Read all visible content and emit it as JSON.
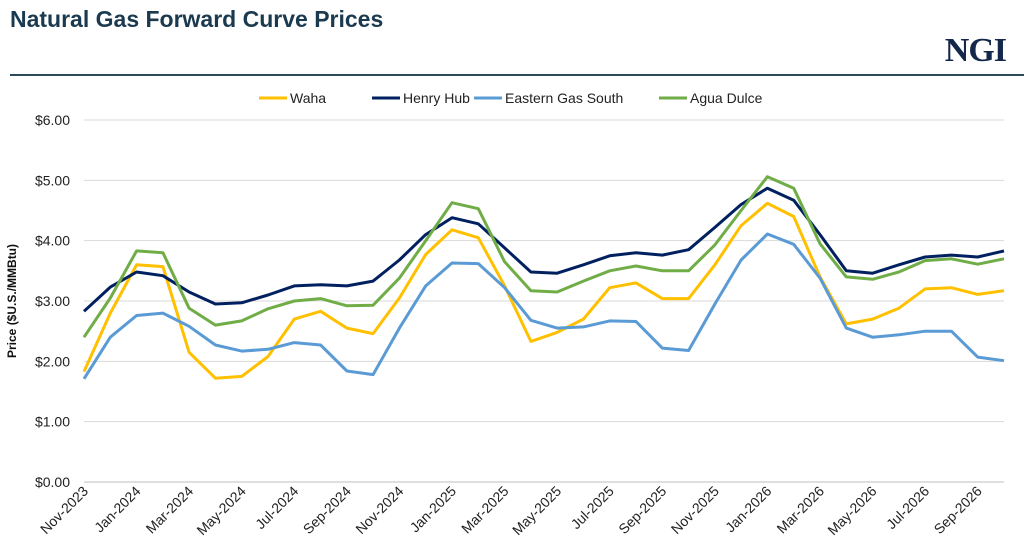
{
  "header": {
    "title": "Natural Gas Forward Curve Prices",
    "logo_text": "NGI"
  },
  "chart_data": {
    "type": "line",
    "title": "Natural Gas Forward Curve Prices",
    "xlabel": "",
    "ylabel": "Price ($U.S./MMBtu)",
    "ylim": [
      0,
      6
    ],
    "yticks": [
      "$0.00",
      "$1.00",
      "$2.00",
      "$3.00",
      "$4.00",
      "$5.00",
      "$6.00"
    ],
    "grid": "horizontal",
    "legend": "top",
    "x": [
      "Nov-2023",
      "Dec-2023",
      "Jan-2024",
      "Feb-2024",
      "Mar-2024",
      "Apr-2024",
      "May-2024",
      "Jun-2024",
      "Jul-2024",
      "Aug-2024",
      "Sep-2024",
      "Oct-2024",
      "Nov-2024",
      "Dec-2024",
      "Jan-2025",
      "Feb-2025",
      "Mar-2025",
      "Apr-2025",
      "May-2025",
      "Jun-2025",
      "Jul-2025",
      "Aug-2025",
      "Sep-2025",
      "Oct-2025",
      "Nov-2025",
      "Dec-2025",
      "Jan-2026",
      "Feb-2026",
      "Mar-2026",
      "Apr-2026",
      "May-2026",
      "Jun-2026",
      "Jul-2026",
      "Aug-2026",
      "Sep-2026",
      "Oct-2026"
    ],
    "xtick_labels": [
      "Nov-2023",
      "Jan-2024",
      "Mar-2024",
      "May-2024",
      "Jul-2024",
      "Sep-2024",
      "Nov-2024",
      "Jan-2025",
      "Mar-2025",
      "May-2025",
      "Jul-2025",
      "Sep-2025",
      "Nov-2025",
      "Jan-2026",
      "Mar-2026",
      "May-2026",
      "Jul-2026",
      "Sep-2026"
    ],
    "series": [
      {
        "name": "Waha",
        "color": "#ffc000",
        "values": [
          1.83,
          2.8,
          3.6,
          3.57,
          2.15,
          1.72,
          1.75,
          2.08,
          2.7,
          2.83,
          2.55,
          2.46,
          3.05,
          3.77,
          4.18,
          4.05,
          3.25,
          2.33,
          2.48,
          2.7,
          3.22,
          3.3,
          3.04,
          3.04,
          3.6,
          4.25,
          4.62,
          4.4,
          3.4,
          2.62,
          2.7,
          2.88,
          3.2,
          3.22,
          3.11,
          3.17
        ]
      },
      {
        "name": "Henry Hub",
        "color": "#002060",
        "values": [
          2.83,
          3.23,
          3.48,
          3.42,
          3.15,
          2.95,
          2.97,
          3.1,
          3.25,
          3.27,
          3.25,
          3.33,
          3.68,
          4.1,
          4.38,
          4.28,
          3.88,
          3.48,
          3.46,
          3.6,
          3.75,
          3.8,
          3.76,
          3.85,
          4.22,
          4.6,
          4.87,
          4.67,
          4.1,
          3.5,
          3.46,
          3.6,
          3.73,
          3.76,
          3.73,
          3.83
        ]
      },
      {
        "name": "Eastern Gas South",
        "color": "#5b9bd5",
        "values": [
          1.71,
          2.4,
          2.76,
          2.8,
          2.58,
          2.27,
          2.17,
          2.2,
          2.31,
          2.27,
          1.84,
          1.78,
          2.55,
          3.25,
          3.63,
          3.62,
          3.22,
          2.68,
          2.55,
          2.57,
          2.67,
          2.66,
          2.22,
          2.18,
          2.95,
          3.68,
          4.11,
          3.94,
          3.38,
          2.55,
          2.4,
          2.44,
          2.5,
          2.5,
          2.07,
          2.01
        ]
      },
      {
        "name": "Agua Dulce",
        "color": "#70ad47",
        "values": [
          2.4,
          3.05,
          3.83,
          3.8,
          2.88,
          2.6,
          2.67,
          2.87,
          3.0,
          3.04,
          2.92,
          2.93,
          3.38,
          4.0,
          4.63,
          4.53,
          3.65,
          3.17,
          3.15,
          3.33,
          3.5,
          3.58,
          3.5,
          3.5,
          3.93,
          4.5,
          5.06,
          4.87,
          3.95,
          3.4,
          3.36,
          3.48,
          3.67,
          3.7,
          3.61,
          3.7
        ]
      }
    ]
  }
}
